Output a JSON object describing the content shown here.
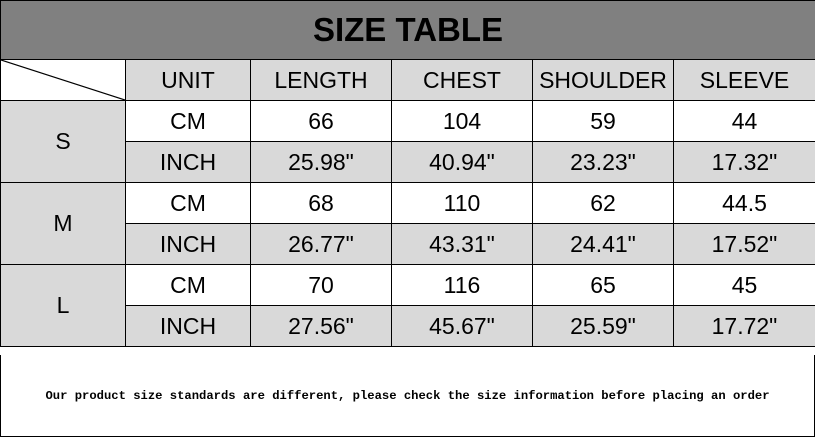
{
  "title": "SIZE TABLE",
  "headers": [
    "UNIT",
    "LENGTH",
    "CHEST",
    "SHOULDER",
    "SLEEVE"
  ],
  "sizes": [
    {
      "size": "S",
      "rows": [
        [
          "CM",
          "66",
          "104",
          "59",
          "44"
        ],
        [
          "INCH",
          "25.98\"",
          "40.94\"",
          "23.23\"",
          "17.32\""
        ]
      ]
    },
    {
      "size": "M",
      "rows": [
        [
          "CM",
          "68",
          "110",
          "62",
          "44.5"
        ],
        [
          "INCH",
          "26.77\"",
          "43.31\"",
          "24.41\"",
          "17.52\""
        ]
      ]
    },
    {
      "size": "L",
      "rows": [
        [
          "CM",
          "70",
          "116",
          "65",
          "45"
        ],
        [
          "INCH",
          "27.56\"",
          "45.67\"",
          "25.59\"",
          "17.72\""
        ]
      ]
    }
  ],
  "note": "Our product size standards are different, please check the size information before placing an order",
  "colors": {
    "title_bg": "#808080",
    "cell_gray": "#d9d9d9"
  }
}
